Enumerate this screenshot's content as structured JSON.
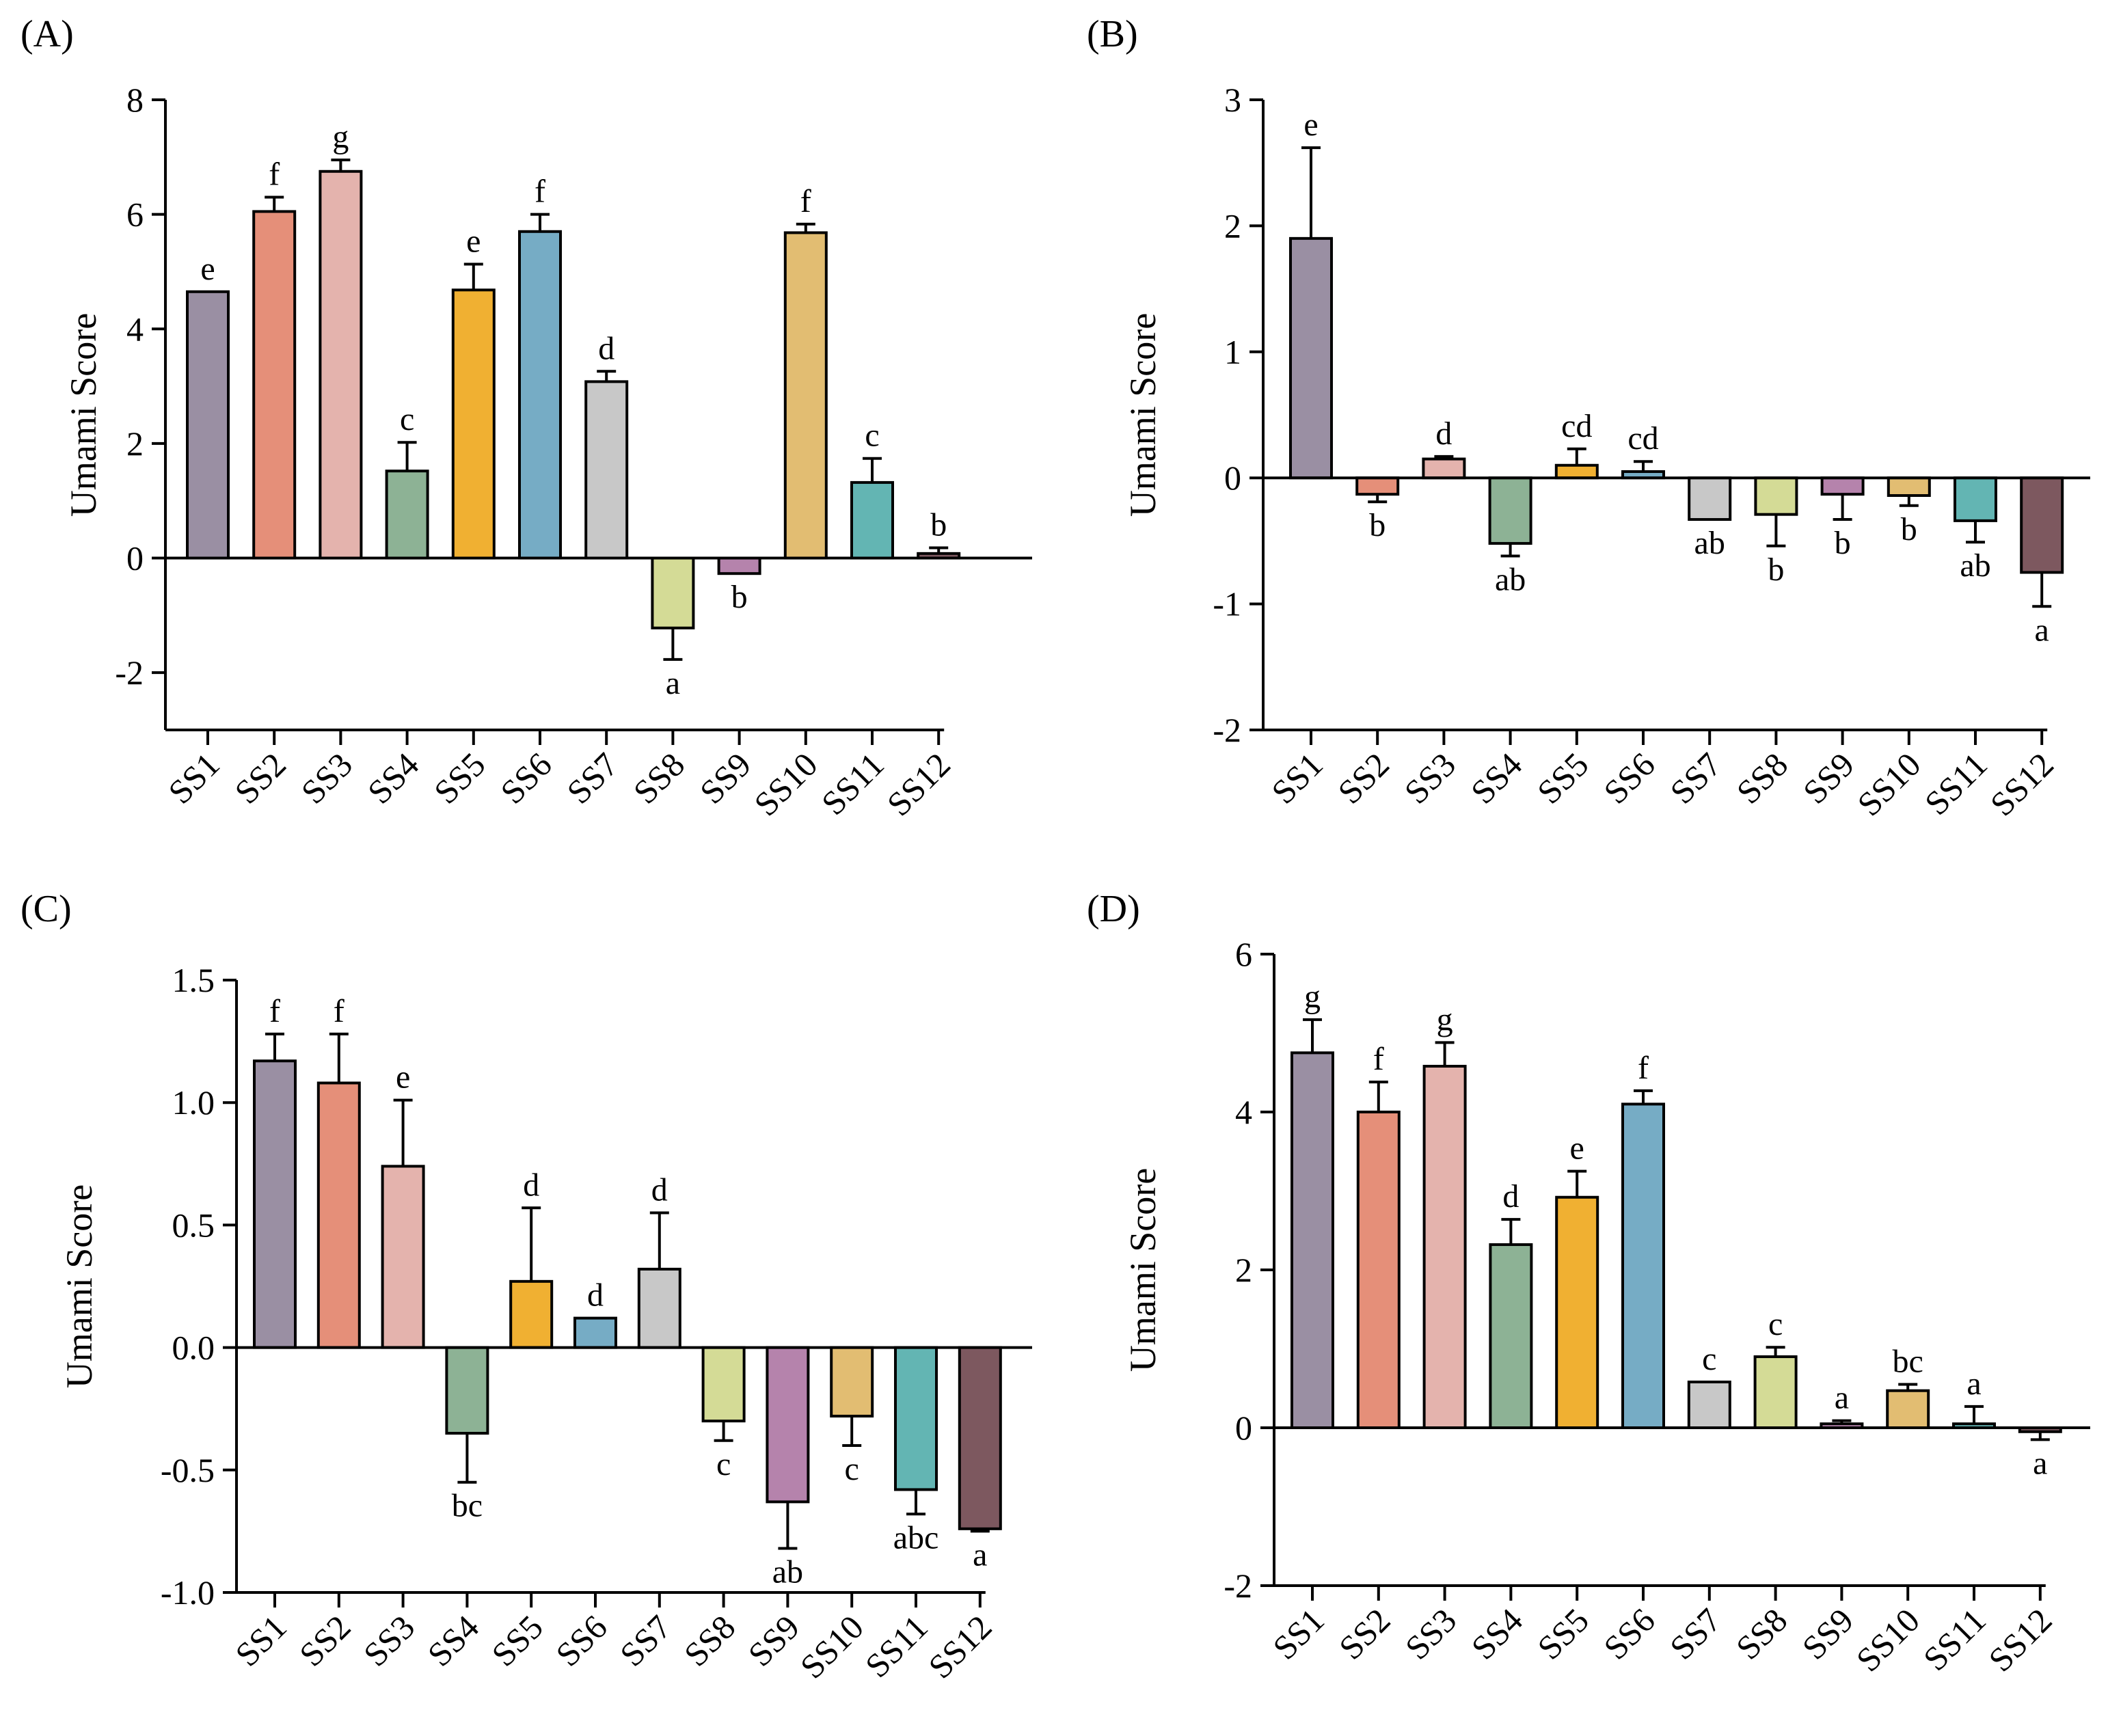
{
  "figure": {
    "colors": [
      "#9a8fa3",
      "#e58f79",
      "#e4b3ad",
      "#8db295",
      "#f0b032",
      "#76acc5",
      "#c8c8c8",
      "#d4db96",
      "#b583ac",
      "#e2bd72",
      "#63b5b3",
      "#7d585f"
    ]
  },
  "chart_data": [
    {
      "type": "bar",
      "panel": "(A)",
      "ylabel": "Umami Score",
      "ylim": [
        -3,
        8
      ],
      "yticks": [
        -2,
        0,
        2,
        4,
        6,
        8
      ],
      "categories": [
        "SS1",
        "SS2",
        "SS3",
        "SS4",
        "SS5",
        "SS6",
        "SS7",
        "SS8",
        "SS9",
        "SS10",
        "SS11",
        "SS12"
      ],
      "values": [
        4.65,
        6.05,
        6.75,
        1.52,
        4.68,
        5.7,
        3.08,
        -1.22,
        -0.27,
        5.68,
        1.32,
        0.08
      ],
      "errors": [
        0,
        0.25,
        0.2,
        0.5,
        0.45,
        0.3,
        0.18,
        0.55,
        0,
        0.15,
        0.42,
        0.1
      ],
      "letters": [
        "e",
        "f",
        "g",
        "c",
        "e",
        "f",
        "d",
        "a",
        "b",
        "f",
        "c",
        "b"
      ]
    },
    {
      "type": "bar",
      "panel": "(B)",
      "ylabel": "Umami Score",
      "ylim": [
        -2,
        3
      ],
      "yticks": [
        -2,
        -1,
        0,
        1,
        2,
        3
      ],
      "categories": [
        "SS1",
        "SS2",
        "SS3",
        "SS4",
        "SS5",
        "SS6",
        "SS7",
        "SS8",
        "SS9",
        "SS10",
        "SS11",
        "SS12"
      ],
      "values": [
        1.9,
        -0.13,
        0.15,
        -0.52,
        0.1,
        0.05,
        -0.33,
        -0.29,
        -0.13,
        -0.14,
        -0.34,
        -0.75
      ],
      "errors": [
        0.72,
        0.06,
        0.02,
        0.1,
        0.13,
        0.08,
        0,
        0.25,
        0.2,
        0.08,
        0.17,
        0.27
      ],
      "letters": [
        "e",
        "b",
        "d",
        "ab",
        "cd",
        "cd",
        "ab",
        "b",
        "b",
        "b",
        "ab",
        "a"
      ]
    },
    {
      "type": "bar",
      "panel": "(C)",
      "ylabel": "Umami Score",
      "ylim": [
        -1.0,
        1.5
      ],
      "yticks": [
        -1.0,
        -0.5,
        0.0,
        0.5,
        1.0,
        1.5
      ],
      "yticklabels": [
        "-1.0",
        "-0.5",
        "0.0",
        "0.5",
        "1.0",
        "1.5"
      ],
      "categories": [
        "SS1",
        "SS2",
        "SS3",
        "SS4",
        "SS5",
        "SS6",
        "SS7",
        "SS8",
        "SS9",
        "SS10",
        "SS11",
        "SS12"
      ],
      "values": [
        1.17,
        1.08,
        0.74,
        -0.35,
        0.27,
        0.12,
        0.32,
        -0.3,
        -0.63,
        -0.28,
        -0.58,
        -0.74
      ],
      "errors": [
        0.11,
        0.2,
        0.27,
        0.2,
        0.3,
        0,
        0.23,
        0.08,
        0.19,
        0.12,
        0.1,
        0.01
      ],
      "letters": [
        "f",
        "f",
        "e",
        "bc",
        "d",
        "d",
        "d",
        "c",
        "ab",
        "c",
        "abc",
        "a"
      ]
    },
    {
      "type": "bar",
      "panel": "(D)",
      "ylabel": "Umami Score",
      "ylim": [
        -2,
        6
      ],
      "yticks": [
        -2,
        0,
        2,
        4,
        6
      ],
      "categories": [
        "SS1",
        "SS2",
        "SS3",
        "SS4",
        "SS5",
        "SS6",
        "SS7",
        "SS8",
        "SS9",
        "SS10",
        "SS11",
        "SS12"
      ],
      "values": [
        4.75,
        4.0,
        4.58,
        2.32,
        2.92,
        4.1,
        0.58,
        0.9,
        0.05,
        0.47,
        0.05,
        -0.05
      ],
      "errors": [
        0.42,
        0.38,
        0.3,
        0.32,
        0.33,
        0.17,
        0,
        0.12,
        0.04,
        0.08,
        0.22,
        0.1
      ],
      "letters": [
        "g",
        "f",
        "g",
        "d",
        "e",
        "f",
        "c",
        "c",
        "a",
        "bc",
        "a",
        "a"
      ]
    }
  ]
}
